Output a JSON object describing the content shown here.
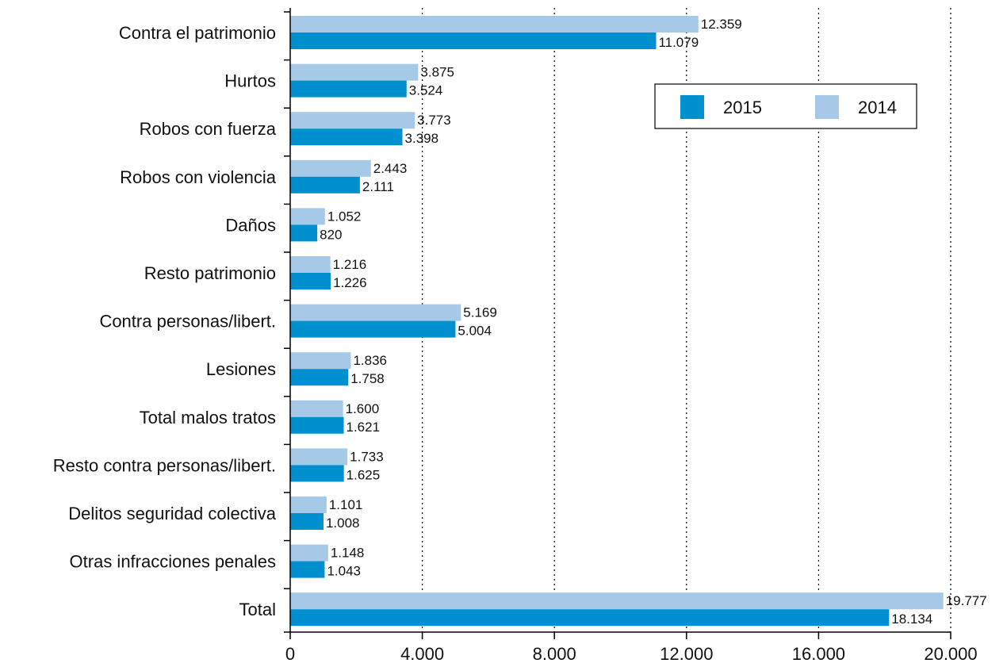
{
  "chart_data": {
    "type": "bar",
    "orientation": "horizontal",
    "categories": [
      "Contra el patrimonio",
      "Hurtos",
      "Robos con fuerza",
      "Robos con violencia",
      "Daños",
      "Resto patrimonio",
      "Contra personas/libert.",
      "Lesiones",
      "Total malos tratos",
      "Resto contra personas/libert.",
      "Delitos seguridad colectiva",
      "Otras infracciones penales",
      "Total"
    ],
    "series": [
      {
        "name": "2014",
        "color": "#a6c9e8",
        "values": [
          12359,
          3875,
          3773,
          2443,
          1052,
          1216,
          5169,
          1836,
          1600,
          1733,
          1101,
          1148,
          19777
        ],
        "labels": [
          "12.359",
          "3.875",
          "3.773",
          "2.443",
          "1.052",
          "1.216",
          "5.169",
          "1.836",
          "1.600",
          "1.733",
          "1.101",
          "1.148",
          "19.777"
        ]
      },
      {
        "name": "2015",
        "color": "#0090d0",
        "values": [
          11079,
          3524,
          3398,
          2111,
          820,
          1226,
          5004,
          1758,
          1621,
          1625,
          1008,
          1043,
          18134
        ],
        "labels": [
          "11.079",
          "3.524",
          "3.398",
          "2.111",
          "820",
          "1.226",
          "5.004",
          "1.758",
          "1.621",
          "1.625",
          "1.008",
          "1.043",
          "18.134"
        ]
      }
    ],
    "xlim": [
      0,
      20000
    ],
    "xticks": [
      0,
      4000,
      8000,
      12000,
      16000,
      20000
    ],
    "xtick_labels": [
      "0",
      "4.000",
      "8.000",
      "12.000",
      "16.000",
      "20.000"
    ],
    "grid": "vertical dotted",
    "legend": {
      "placement": "top-right",
      "entries": [
        "2015",
        "2014"
      ]
    }
  }
}
